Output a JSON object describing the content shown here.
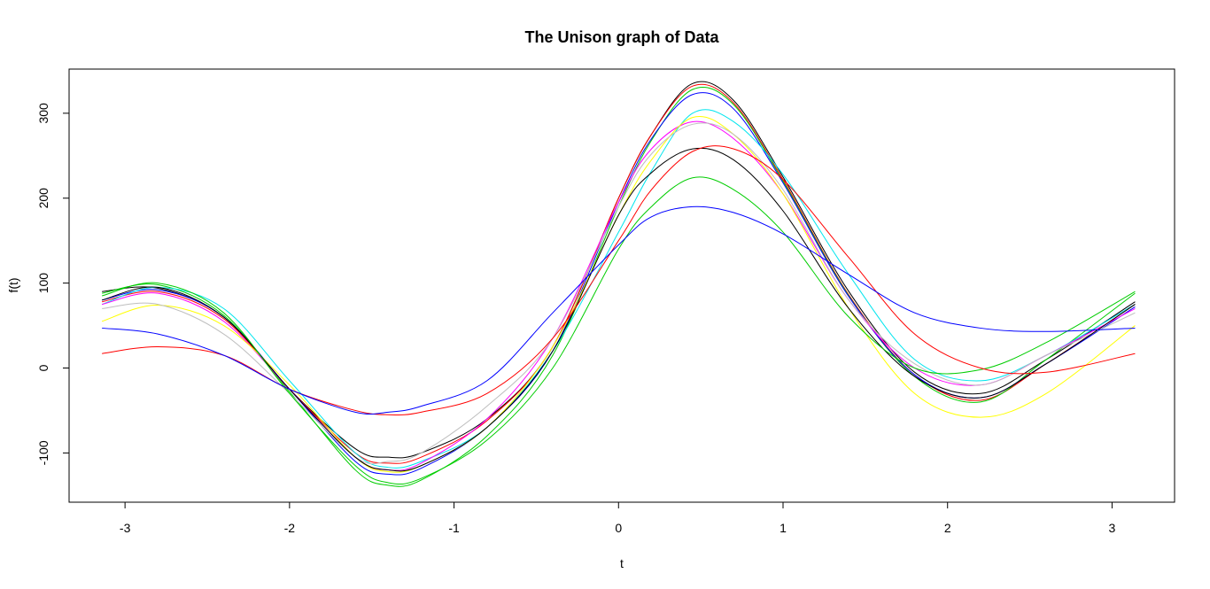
{
  "chart_data": {
    "type": "line",
    "title": "The Unison graph of Data",
    "xlabel": "t",
    "ylabel": "f(t)",
    "xlim": [
      -3.34,
      3.38
    ],
    "ylim": [
      -158,
      352
    ],
    "xticks": [
      -3,
      -2,
      -1,
      0,
      1,
      2,
      3
    ],
    "yticks": [
      -100,
      0,
      100,
      200,
      300
    ],
    "grid": false,
    "legend": "none",
    "x": [
      -3.14,
      -2.8,
      -2.4,
      -2.0,
      -1.6,
      -1.4,
      -1.2,
      -0.8,
      -0.4,
      0.0,
      0.2,
      0.45,
      0.7,
      1.0,
      1.4,
      1.8,
      2.2,
      2.6,
      3.14
    ],
    "series": [
      {
        "color": "#000000",
        "values": [
          90,
          94,
          60,
          -25,
          -95,
          -105,
          -100,
          -60,
          25,
          200,
          275,
          335,
          315,
          225,
          90,
          -5,
          -30,
          10,
          78
        ]
      },
      {
        "color": "#ff0000",
        "values": [
          78,
          90,
          58,
          -25,
          -100,
          -112,
          -105,
          -62,
          25,
          200,
          275,
          332,
          312,
          222,
          86,
          -8,
          -38,
          5,
          75
        ]
      },
      {
        "color": "#00cd00",
        "values": [
          88,
          98,
          62,
          -28,
          -120,
          -138,
          -132,
          -80,
          15,
          190,
          268,
          328,
          310,
          220,
          85,
          -10,
          -40,
          10,
          88
        ]
      },
      {
        "color": "#0000ff",
        "values": [
          80,
          92,
          60,
          -25,
          -110,
          -125,
          -118,
          -70,
          20,
          195,
          270,
          322,
          305,
          218,
          84,
          -8,
          -35,
          5,
          72
        ]
      },
      {
        "color": "#00e5ee",
        "values": [
          75,
          95,
          70,
          -15,
          -100,
          -117,
          -110,
          -70,
          20,
          160,
          232,
          300,
          290,
          228,
          110,
          10,
          -15,
          15,
          75
        ]
      },
      {
        "color": "#ff00ff",
        "values": [
          75,
          88,
          55,
          -25,
          -105,
          -120,
          -112,
          -60,
          35,
          195,
          258,
          290,
          270,
          205,
          80,
          0,
          -20,
          15,
          70
        ]
      },
      {
        "color": "#ffff00",
        "values": [
          55,
          74,
          50,
          -20,
          -105,
          -122,
          -115,
          -70,
          25,
          180,
          245,
          295,
          275,
          205,
          70,
          -30,
          -58,
          -30,
          50
        ]
      },
      {
        "color": "#bebebe",
        "values": [
          70,
          75,
          40,
          -30,
          -105,
          -110,
          -100,
          -45,
          35,
          190,
          252,
          287,
          275,
          210,
          80,
          5,
          -20,
          15,
          65
        ]
      },
      {
        "color": "#000000",
        "values": [
          80,
          95,
          60,
          -25,
          -105,
          -120,
          -115,
          -70,
          20,
          180,
          230,
          258,
          245,
          185,
          70,
          -10,
          -35,
          5,
          75
        ]
      },
      {
        "color": "#00cd00",
        "values": [
          85,
          100,
          65,
          -30,
          -115,
          -135,
          -130,
          -85,
          0,
          140,
          190,
          224,
          210,
          160,
          60,
          0,
          -2,
          30,
          90
        ]
      },
      {
        "color": "#ff0000",
        "values": [
          17,
          25,
          15,
          -25,
          -50,
          -55,
          -52,
          -30,
          35,
          150,
          210,
          255,
          258,
          222,
          130,
          40,
          0,
          -5,
          17
        ]
      },
      {
        "color": "#0000ff",
        "values": [
          47,
          40,
          15,
          -25,
          -52,
          -52,
          -45,
          -15,
          65,
          145,
          178,
          190,
          183,
          158,
          110,
          65,
          47,
          43,
          47
        ]
      }
    ]
  }
}
